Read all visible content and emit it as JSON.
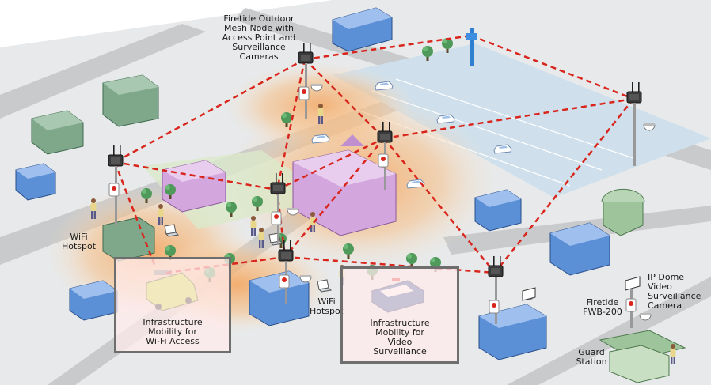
{
  "labels": {
    "mesh_node": "Firetide Outdoor\nMesh Node with\nAccess Point and\nSurveillance\nCameras",
    "wifi_hotspot_left": "WiFi\nHotspot",
    "wifi_hotspot_center": "WiFi\nHotspot",
    "ip_dome": "IP Dome\nVideo\nSurveillance\nCamera",
    "fwb200": "Firetide\nFWB-200",
    "guard_station": "Guard\nStation"
  },
  "boxes": {
    "wifi_access": "Infrastructure\nMobility for\nWi-Fi Access",
    "video_surveillance": "Infrastructure\nMobility for\nVideo\nSurveillance"
  },
  "colors": {
    "ground": "#e6e8e8",
    "road": "#c9cbcc",
    "parking": "#cfe0ec",
    "park": "#d9e8c8",
    "coverage": "#f3a35c",
    "mesh_link": "#d9251c",
    "building_blue": "#5b8fd6",
    "building_green": "#7fa88a",
    "building_purple": "#d4a6de",
    "node_dark": "#333333",
    "box_fill": "#fde3e3",
    "box_border": "#6e6e6e"
  },
  "icons": [
    "mesh-node-icon",
    "dome-camera-icon",
    "tree-icon",
    "person-icon",
    "car-icon",
    "van-icon",
    "police-car-icon",
    "laptop-icon",
    "building-icon",
    "guard-booth-icon"
  ]
}
